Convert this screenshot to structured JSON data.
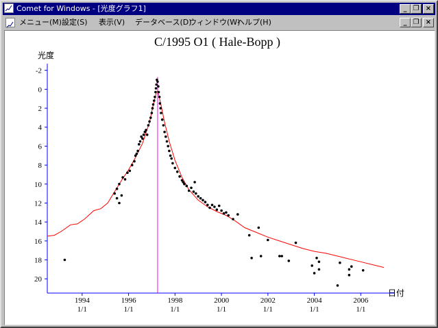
{
  "window": {
    "title": "Comet for Windows - [光度グラフ1]",
    "buttons": [
      "_",
      "❐",
      "×"
    ],
    "doc_buttons": [
      "_",
      "❐",
      "×"
    ]
  },
  "menu": {
    "items": [
      "メニュー(M)",
      "設定(S)",
      "表示(V)",
      "データベース(D)",
      "ウィンドウ(W)",
      "ヘルプ(H)"
    ]
  },
  "chart_data": {
    "type": "scatter",
    "title": "C/1995 O1 ( Hale-Bopp )",
    "ylabel": "光度",
    "xlabel": "日付",
    "y_inverted": true,
    "ylim": [
      21.5,
      -2.7
    ],
    "xlim": [
      1992.5,
      2007.2
    ],
    "y_ticks": [
      -2,
      0,
      2,
      4,
      6,
      8,
      10,
      12,
      14,
      16,
      18,
      20
    ],
    "x_ticks": [
      {
        "year": 1994,
        "line1": "1994",
        "line2": "1/1"
      },
      {
        "year": 1996,
        "line1": "1996",
        "line2": "1/1"
      },
      {
        "year": 1998,
        "line1": "1998",
        "line2": "1/1"
      },
      {
        "year": 2000,
        "line1": "2000",
        "line2": "1/1"
      },
      {
        "year": 2002,
        "line1": "2002",
        "line2": "1/1"
      },
      {
        "year": 2004,
        "line1": "2004",
        "line2": "1/1"
      },
      {
        "year": 2006,
        "line1": "2006",
        "line2": "1/1"
      }
    ],
    "perihelion_year": 1997.25,
    "colors": {
      "axis": "#0000ff",
      "model": "#ff0000",
      "perihelion": "#ff00ff",
      "points": "#000000"
    },
    "model_curve": {
      "x": [
        1992.5,
        1992.8,
        1993.1,
        1993.5,
        1993.8,
        1994.1,
        1994.5,
        1994.8,
        1995.1,
        1995.4,
        1995.7,
        1996.0,
        1996.3,
        1996.6,
        1996.9,
        1997.05,
        1997.15,
        1997.2,
        1997.25,
        1997.3,
        1997.4,
        1997.55,
        1997.75,
        1998.0,
        1998.3,
        1998.6,
        1999.0,
        1999.4,
        1999.8,
        2000.2,
        2000.6,
        2001.0,
        2001.5,
        2002.0,
        2002.5,
        2003.0,
        2003.5,
        2004.0,
        2004.5,
        2005.0,
        2005.5,
        2006.0,
        2006.5,
        2007.0
      ],
      "y": [
        15.5,
        15.4,
        15.0,
        14.3,
        14.2,
        13.7,
        12.8,
        12.6,
        12.0,
        10.8,
        9.6,
        8.5,
        7.2,
        5.7,
        3.5,
        1.8,
        0.8,
        0.3,
        0.2,
        0.6,
        1.7,
        3.5,
        5.5,
        7.5,
        9.3,
        10.6,
        11.7,
        12.4,
        12.9,
        13.3,
        13.9,
        14.6,
        15.1,
        15.6,
        16.0,
        16.4,
        16.8,
        17.1,
        17.3,
        17.6,
        17.9,
        18.2,
        18.5,
        18.8
      ]
    },
    "points": {
      "x": [
        1993.25,
        1995.4,
        1995.5,
        1995.6,
        1995.7,
        1995.5,
        1995.6,
        1995.75,
        1995.85,
        1995.95,
        1996.05,
        1996.15,
        1996.25,
        1996.3,
        1996.35,
        1996.4,
        1996.45,
        1996.5,
        1996.55,
        1996.6,
        1996.65,
        1996.7,
        1996.75,
        1996.8,
        1996.85,
        1996.9,
        1996.95,
        1997.0,
        1997.03,
        1997.06,
        1997.1,
        1997.13,
        1997.16,
        1997.18,
        1997.2,
        1997.22,
        1997.25,
        1997.28,
        1997.3,
        1997.33,
        1997.35,
        1997.38,
        1997.4,
        1997.45,
        1997.5,
        1997.55,
        1997.6,
        1997.65,
        1997.7,
        1997.75,
        1997.8,
        1997.85,
        1997.9,
        1998.0,
        1998.1,
        1998.2,
        1998.3,
        1998.35,
        1998.4,
        1998.5,
        1998.6,
        1998.7,
        1998.8,
        1998.85,
        1998.9,
        1999.0,
        1999.1,
        1999.2,
        1999.3,
        1999.4,
        1999.5,
        1999.6,
        1999.7,
        1999.8,
        1999.9,
        2000.0,
        2000.1,
        2000.2,
        2000.3,
        2000.5,
        2000.7,
        2001.2,
        2001.3,
        2001.6,
        2001.7,
        2002.0,
        2002.5,
        2002.6,
        2002.9,
        2003.2,
        2003.9,
        2004.0,
        2004.1,
        2004.2,
        2004.2,
        2005.0,
        2005.1,
        2005.5,
        2005.5,
        2005.6,
        2006.1
      ],
      "y": [
        18.0,
        11.0,
        11.5,
        12.0,
        11.2,
        10.5,
        10.0,
        9.3,
        9.5,
        8.8,
        8.6,
        8.0,
        7.6,
        7.0,
        6.8,
        6.5,
        5.8,
        5.5,
        5.0,
        5.2,
        4.8,
        4.5,
        4.3,
        4.8,
        3.8,
        3.4,
        3.0,
        2.5,
        2.0,
        1.6,
        1.2,
        0.8,
        0.3,
        -0.1,
        -0.5,
        -1.0,
        -0.8,
        -0.3,
        0.3,
        0.8,
        1.5,
        2.0,
        2.5,
        3.2,
        3.8,
        4.5,
        5.0,
        5.5,
        6.0,
        6.5,
        7.0,
        7.3,
        7.8,
        8.3,
        8.7,
        9.2,
        9.6,
        9.8,
        10.0,
        10.2,
        10.7,
        10.4,
        10.8,
        9.8,
        11.0,
        11.3,
        11.5,
        11.7,
        11.9,
        12.2,
        12.5,
        12.2,
        12.4,
        12.7,
        12.3,
        12.8,
        13.1,
        13.0,
        13.3,
        13.7,
        13.2,
        15.4,
        17.8,
        14.6,
        17.6,
        15.9,
        17.6,
        17.6,
        18.1,
        16.2,
        18.6,
        19.4,
        17.8,
        18.2,
        19.0,
        20.7,
        18.3,
        19.0,
        19.6,
        18.7,
        19.1
      ]
    }
  }
}
